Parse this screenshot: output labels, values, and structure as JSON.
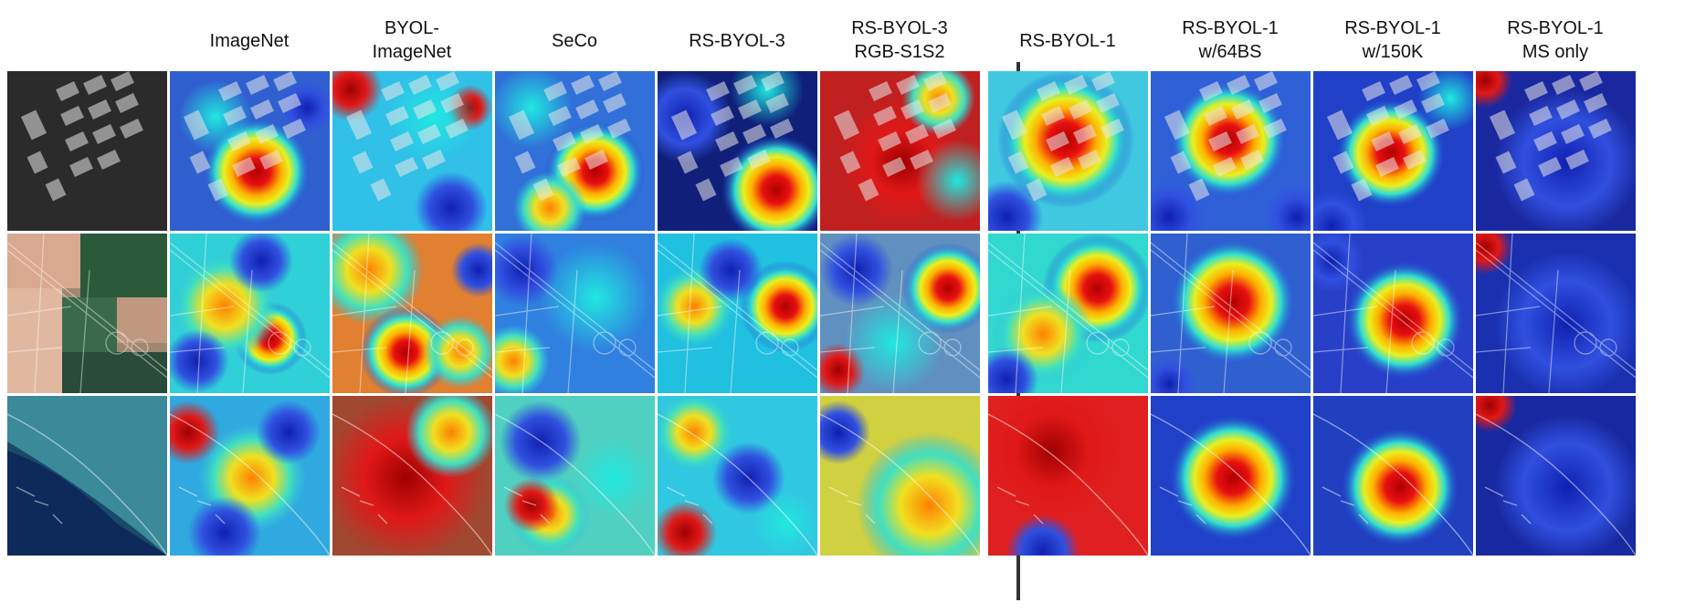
{
  "columns": [
    {
      "id": "input",
      "lines": []
    },
    {
      "id": "imagenet",
      "lines": [
        "ImageNet"
      ]
    },
    {
      "id": "byol-imagenet",
      "lines": [
        "BYOL-",
        "ImageNet"
      ]
    },
    {
      "id": "seco",
      "lines": [
        "SeCo"
      ]
    },
    {
      "id": "rs-byol-3",
      "lines": [
        "RS-BYOL-3"
      ]
    },
    {
      "id": "rs-byol-3-rgb",
      "lines": [
        "RS-BYOL-3",
        "RGB-S1S2"
      ]
    },
    {
      "id": "rs-byol-1",
      "lines": [
        "RS-BYOL-1"
      ]
    },
    {
      "id": "rs-byol-1-64bs",
      "lines": [
        "RS-BYOL-1",
        "w/64BS"
      ]
    },
    {
      "id": "rs-byol-1-150k",
      "lines": [
        "RS-BYOL-1",
        "w/150K"
      ]
    },
    {
      "id": "rs-byol-1-ms",
      "lines": [
        "RS-BYOL-1",
        "MS only"
      ]
    }
  ],
  "rows": [
    {
      "id": "industrial-buildings"
    },
    {
      "id": "farmland-highway"
    },
    {
      "id": "coastline"
    }
  ]
}
